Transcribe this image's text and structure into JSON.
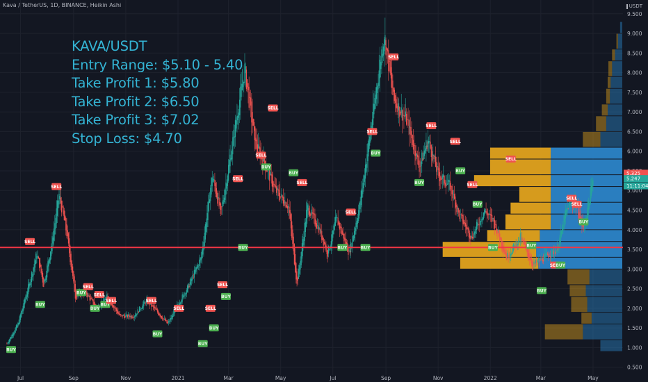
{
  "header": {
    "title": "Kava / TetherUS, 1D, BINANCE, Heikin Ashi",
    "currency": "USDT"
  },
  "notes": [
    "KAVA/USDT",
    "Entry Range: $5.10 - 5.40",
    "Take Profit 1: $5.80",
    "Take Profit 2: $6.50",
    "Take Profit 3: $7.02",
    "Stop Loss: $4.70"
  ],
  "colors": {
    "background": "#131722",
    "up": "#26a69a",
    "down": "#ef5350",
    "sell_label": "#ef5350",
    "buy_label": "#4caf50",
    "horizontal_line": "#f23645",
    "volume_profile_gold": "#e0a21d",
    "volume_profile_blue": "#2b84c8",
    "notes_text": "#34b4d4"
  },
  "chart_data": {
    "type": "candlestick",
    "style": "Heikin Ashi",
    "symbol": "KAVA/USDT",
    "interval": "1D",
    "exchange": "BINANCE",
    "x_ticks": [
      "Jul",
      "Sep",
      "Nov",
      "2021",
      "Mar",
      "May",
      "Jul",
      "Sep",
      "Nov",
      "2022",
      "Mar",
      "May"
    ],
    "y_ticks": [
      "0.500",
      "1.000",
      "1.500",
      "2.000",
      "2.500",
      "3.000",
      "3.500",
      "4.000",
      "4.500",
      "5.000",
      "5.500",
      "6.000",
      "6.500",
      "7.000",
      "7.500",
      "8.000",
      "8.500",
      "9.000",
      "9.500"
    ],
    "ylim": [
      0.3,
      9.85
    ],
    "price_path": [
      [
        "2020-06-15",
        1.1
      ],
      [
        "2020-06-28",
        1.6
      ],
      [
        "2020-07-12",
        2.7
      ],
      [
        "2020-07-20",
        3.4
      ],
      [
        "2020-07-28",
        2.6
      ],
      [
        "2020-08-06",
        3.6
      ],
      [
        "2020-08-15",
        4.9
      ],
      [
        "2020-08-24",
        3.9
      ],
      [
        "2020-09-03",
        2.3
      ],
      [
        "2020-09-15",
        2.4
      ],
      [
        "2020-09-28",
        2.0
      ],
      [
        "2020-10-10",
        2.3
      ],
      [
        "2020-10-25",
        1.8
      ],
      [
        "2020-11-10",
        1.8
      ],
      [
        "2020-11-25",
        2.2
      ],
      [
        "2020-12-08",
        1.9
      ],
      [
        "2020-12-20",
        1.6
      ],
      [
        "2021-01-01",
        2.1
      ],
      [
        "2021-01-14",
        2.6
      ],
      [
        "2021-01-28",
        3.3
      ],
      [
        "2021-02-10",
        5.4
      ],
      [
        "2021-02-20",
        4.4
      ],
      [
        "2021-03-01",
        5.6
      ],
      [
        "2021-03-10",
        6.8
      ],
      [
        "2021-03-20",
        8.1
      ],
      [
        "2021-04-01",
        6.2
      ],
      [
        "2021-04-10",
        5.8
      ],
      [
        "2021-04-25",
        5.0
      ],
      [
        "2021-05-10",
        4.6
      ],
      [
        "2021-05-20",
        2.6
      ],
      [
        "2021-06-01",
        4.6
      ],
      [
        "2021-06-15",
        4.0
      ],
      [
        "2021-06-25",
        3.4
      ],
      [
        "2021-07-05",
        4.3
      ],
      [
        "2021-07-20",
        3.4
      ],
      [
        "2021-08-01",
        4.6
      ],
      [
        "2021-08-15",
        6.7
      ],
      [
        "2021-08-30",
        9.0
      ],
      [
        "2021-09-10",
        7.3
      ],
      [
        "2021-09-25",
        6.8
      ],
      [
        "2021-10-10",
        5.6
      ],
      [
        "2021-10-20",
        6.3
      ],
      [
        "2021-11-01",
        5.4
      ],
      [
        "2021-11-15",
        5.1
      ],
      [
        "2021-11-25",
        4.4
      ],
      [
        "2021-12-10",
        3.8
      ],
      [
        "2021-12-25",
        4.5
      ],
      [
        "2022-01-05",
        4.2
      ],
      [
        "2022-01-20",
        3.3
      ],
      [
        "2022-02-05",
        3.8
      ],
      [
        "2022-02-20",
        3.1
      ],
      [
        "2022-03-05",
        3.3
      ],
      [
        "2022-03-20",
        3.5
      ],
      [
        "2022-04-01",
        4.6
      ],
      [
        "2022-04-10",
        4.7
      ],
      [
        "2022-04-20",
        4.0
      ],
      [
        "2022-05-01",
        5.3
      ]
    ],
    "signals": [
      {
        "type": "BUY",
        "date": "2020-06-20",
        "price": 0.95
      },
      {
        "type": "SELL",
        "date": "2020-07-12",
        "price": 3.7
      },
      {
        "type": "BUY",
        "date": "2020-07-24",
        "price": 2.1
      },
      {
        "type": "SELL",
        "date": "2020-08-12",
        "price": 5.1
      },
      {
        "type": "BUY",
        "date": "2020-09-10",
        "price": 2.4
      },
      {
        "type": "SELL",
        "date": "2020-09-18",
        "price": 2.55
      },
      {
        "type": "BUY",
        "date": "2020-09-26",
        "price": 2.0
      },
      {
        "type": "SELL",
        "date": "2020-10-01",
        "price": 2.35
      },
      {
        "type": "BUY",
        "date": "2020-10-08",
        "price": 2.1
      },
      {
        "type": "SELL",
        "date": "2020-10-15",
        "price": 2.2
      },
      {
        "type": "SELL",
        "date": "2020-12-01",
        "price": 2.2
      },
      {
        "type": "BUY",
        "date": "2020-12-08",
        "price": 1.35
      },
      {
        "type": "SELL",
        "date": "2021-01-02",
        "price": 2.0
      },
      {
        "type": "BUY",
        "date": "2021-01-30",
        "price": 1.1
      },
      {
        "type": "SELL",
        "date": "2021-02-08",
        "price": 2.0
      },
      {
        "type": "BUY",
        "date": "2021-02-12",
        "price": 1.5
      },
      {
        "type": "SELL",
        "date": "2021-02-22",
        "price": 2.6
      },
      {
        "type": "BUY",
        "date": "2021-02-26",
        "price": 2.3
      },
      {
        "type": "SELL",
        "date": "2021-03-12",
        "price": 5.3
      },
      {
        "type": "BUY",
        "date": "2021-03-18",
        "price": 3.55
      },
      {
        "type": "SELL",
        "date": "2021-04-08",
        "price": 5.9
      },
      {
        "type": "BUY",
        "date": "2021-04-14",
        "price": 5.6
      },
      {
        "type": "SELL",
        "date": "2021-04-22",
        "price": 7.1
      },
      {
        "type": "BUY",
        "date": "2021-05-16",
        "price": 5.45
      },
      {
        "type": "SELL",
        "date": "2021-05-26",
        "price": 5.2
      },
      {
        "type": "BUY",
        "date": "2021-07-12",
        "price": 3.55
      },
      {
        "type": "SELL",
        "date": "2021-07-22",
        "price": 4.45
      },
      {
        "type": "BUY",
        "date": "2021-08-08",
        "price": 3.55
      },
      {
        "type": "SELL",
        "date": "2021-08-16",
        "price": 6.5
      },
      {
        "type": "BUY",
        "date": "2021-08-20",
        "price": 5.95
      },
      {
        "type": "SELL",
        "date": "2021-09-10",
        "price": 8.4
      },
      {
        "type": "BUY",
        "date": "2021-10-10",
        "price": 5.2
      },
      {
        "type": "SELL",
        "date": "2021-10-24",
        "price": 6.65
      },
      {
        "type": "SELL",
        "date": "2021-11-21",
        "price": 6.25
      },
      {
        "type": "BUY",
        "date": "2021-11-27",
        "price": 5.5
      },
      {
        "type": "SELL",
        "date": "2021-12-11",
        "price": 5.15
      },
      {
        "type": "BUY",
        "date": "2021-12-17",
        "price": 4.65
      },
      {
        "type": "BUY",
        "date": "2022-01-04",
        "price": 3.55
      },
      {
        "type": "SELL",
        "date": "2022-01-25",
        "price": 5.8
      },
      {
        "type": "BUY",
        "date": "2022-02-18",
        "price": 3.6
      },
      {
        "type": "BUY",
        "date": "2022-03-02",
        "price": 2.45
      },
      {
        "type": "SELL",
        "date": "2022-03-18",
        "price": 3.1
      },
      {
        "type": "BUY",
        "date": "2022-03-24",
        "price": 3.1
      },
      {
        "type": "SELL",
        "date": "2022-04-06",
        "price": 4.8
      },
      {
        "type": "SELL",
        "date": "2022-04-12",
        "price": 4.65
      },
      {
        "type": "BUY",
        "date": "2022-04-20",
        "price": 4.2
      }
    ],
    "horizontal_line": {
      "price": 3.55
    },
    "last_price_tags": [
      {
        "text": "5.325",
        "price": 5.325
      },
      {
        "text": "5.247",
        "price": 5.247
      },
      {
        "text": "11:11:04",
        "price": 5.1
      }
    ],
    "volume_profile": [
      {
        "low": 9.0,
        "high": 9.3,
        "gold": 0.0,
        "blue": 3
      },
      {
        "low": 8.6,
        "high": 9.0,
        "gold": 2,
        "blue": 6
      },
      {
        "low": 8.3,
        "high": 8.6,
        "gold": 4,
        "blue": 10
      },
      {
        "low": 7.9,
        "high": 8.3,
        "gold": 5,
        "blue": 14
      },
      {
        "low": 7.6,
        "high": 7.9,
        "gold": 4,
        "blue": 16
      },
      {
        "low": 7.2,
        "high": 7.6,
        "gold": 5,
        "blue": 17
      },
      {
        "low": 6.9,
        "high": 7.2,
        "gold": 8,
        "blue": 20
      },
      {
        "low": 6.5,
        "high": 6.9,
        "gold": 14,
        "blue": 22
      },
      {
        "low": 6.1,
        "high": 6.5,
        "gold": 24,
        "blue": 30
      },
      {
        "low": 5.8,
        "high": 6.1,
        "gold": 83,
        "blue": 98
      },
      {
        "low": 5.4,
        "high": 5.8,
        "gold": 83,
        "blue": 98
      },
      {
        "low": 5.1,
        "high": 5.4,
        "gold": 105,
        "blue": 98
      },
      {
        "low": 4.7,
        "high": 5.1,
        "gold": 43,
        "blue": 98
      },
      {
        "low": 4.4,
        "high": 4.7,
        "gold": 55,
        "blue": 98
      },
      {
        "low": 4.0,
        "high": 4.4,
        "gold": 62,
        "blue": 98
      },
      {
        "low": 3.7,
        "high": 4.0,
        "gold": 72,
        "blue": 113
      },
      {
        "low": 3.3,
        "high": 3.7,
        "gold": 128,
        "blue": 118
      },
      {
        "low": 3.0,
        "high": 3.3,
        "gold": 107,
        "blue": 115
      },
      {
        "low": 2.6,
        "high": 3.0,
        "gold": 30,
        "blue": 45
      },
      {
        "low": 2.3,
        "high": 2.6,
        "gold": 22,
        "blue": 50
      },
      {
        "low": 1.9,
        "high": 2.3,
        "gold": 22,
        "blue": 48
      },
      {
        "low": 1.6,
        "high": 1.9,
        "gold": 14,
        "blue": 42
      },
      {
        "low": 1.2,
        "high": 1.6,
        "gold": 52,
        "blue": 54
      },
      {
        "low": 0.9,
        "high": 1.2,
        "gold": 0,
        "blue": 30
      }
    ]
  }
}
